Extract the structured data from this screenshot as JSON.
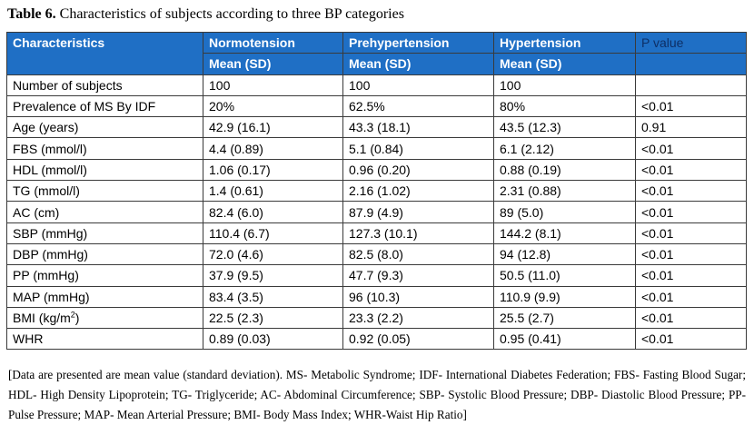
{
  "caption": {
    "label": "Table 6.",
    "text": " Characteristics of subjects according to three BP categories"
  },
  "table": {
    "header": {
      "characteristics": "Characteristics",
      "normotension": "Normotension",
      "prehypertension": "Prehypertension",
      "hypertension": "Hypertension",
      "p_value": "P value",
      "sub_normotension": "Mean (SD)",
      "sub_prehypertension": "Mean (SD)",
      "sub_hypertension": "Mean (SD)"
    },
    "rows": [
      {
        "label": "Number of subjects",
        "normo": "100",
        "prehyper": "100",
        "hyper": "100",
        "p": ""
      },
      {
        "label": "Prevalence of MS By IDF",
        "normo": "20%",
        "prehyper": "62.5%",
        "hyper": "80%",
        "p": "<0.01"
      },
      {
        "label": "Age (years)",
        "normo": "42.9 (16.1)",
        "prehyper": "43.3 (18.1)",
        "hyper": "43.5 (12.3)",
        "p": "0.91"
      },
      {
        "label": "FBS (mmol/l)",
        "normo": "4.4 (0.89)",
        "prehyper": "5.1 (0.84)",
        "hyper": "6.1 (2.12)",
        "p": "<0.01"
      },
      {
        "label": "HDL (mmol/l)",
        "normo": "1.06 (0.17)",
        "prehyper": "0.96 (0.20)",
        "hyper": "0.88 (0.19)",
        "p": "<0.01"
      },
      {
        "label": "TG (mmol/l)",
        "normo": "1.4 (0.61)",
        "prehyper": "2.16 (1.02)",
        "hyper": "2.31 (0.88)",
        "p": "<0.01"
      },
      {
        "label": "AC (cm)",
        "normo": "82.4 (6.0)",
        "prehyper": "87.9 (4.9)",
        "hyper": "89 (5.0)",
        "p": "<0.01"
      },
      {
        "label": "SBP (mmHg)",
        "normo": "110.4 (6.7)",
        "prehyper": "127.3 (10.1)",
        "hyper": "144.2 (8.1)",
        "p": "<0.01"
      },
      {
        "label": "DBP (mmHg)",
        "normo": "72.0 (4.6)",
        "prehyper": "82.5 (8.0)",
        "hyper": "94 (12.8)",
        "p": "<0.01"
      },
      {
        "label": "PP (mmHg)",
        "normo": "37.9 (9.5)",
        "prehyper": "47.7 (9.3)",
        "hyper": "50.5 (11.0)",
        "p": "<0.01"
      },
      {
        "label": "MAP (mmHg)",
        "normo": "83.4 (3.5)",
        "prehyper": "96 (10.3)",
        "hyper": "110.9 (9.9)",
        "p": "<0.01"
      },
      {
        "label": "BMI (kg/m",
        "label_sup": "2",
        "label_suffix": ")",
        "normo": "22.5 (2.3)",
        "prehyper": "23.3 (2.2)",
        "hyper": "25.5 (2.7)",
        "p": "<0.01"
      },
      {
        "label": "WHR",
        "normo": "0.89 (0.03)",
        "prehyper": "0.92 (0.05)",
        "hyper": "0.95 (0.41)",
        "p": "<0.01"
      }
    ]
  },
  "footnote": "[Data are presented are mean value (standard deviation). MS- Metabolic Syndrome; IDF- International Diabetes Federation; FBS- Fasting Blood Sugar; HDL- High Density Lipoprotein; TG- Triglyceride; AC- Abdominal Circumference; SBP- Systolic Blood Pressure; DBP- Diastolic Blood Pressure; PP- Pulse Pressure; MAP- Mean Arterial Pressure; BMI- Body Mass Index; WHR-Waist Hip Ratio]"
}
